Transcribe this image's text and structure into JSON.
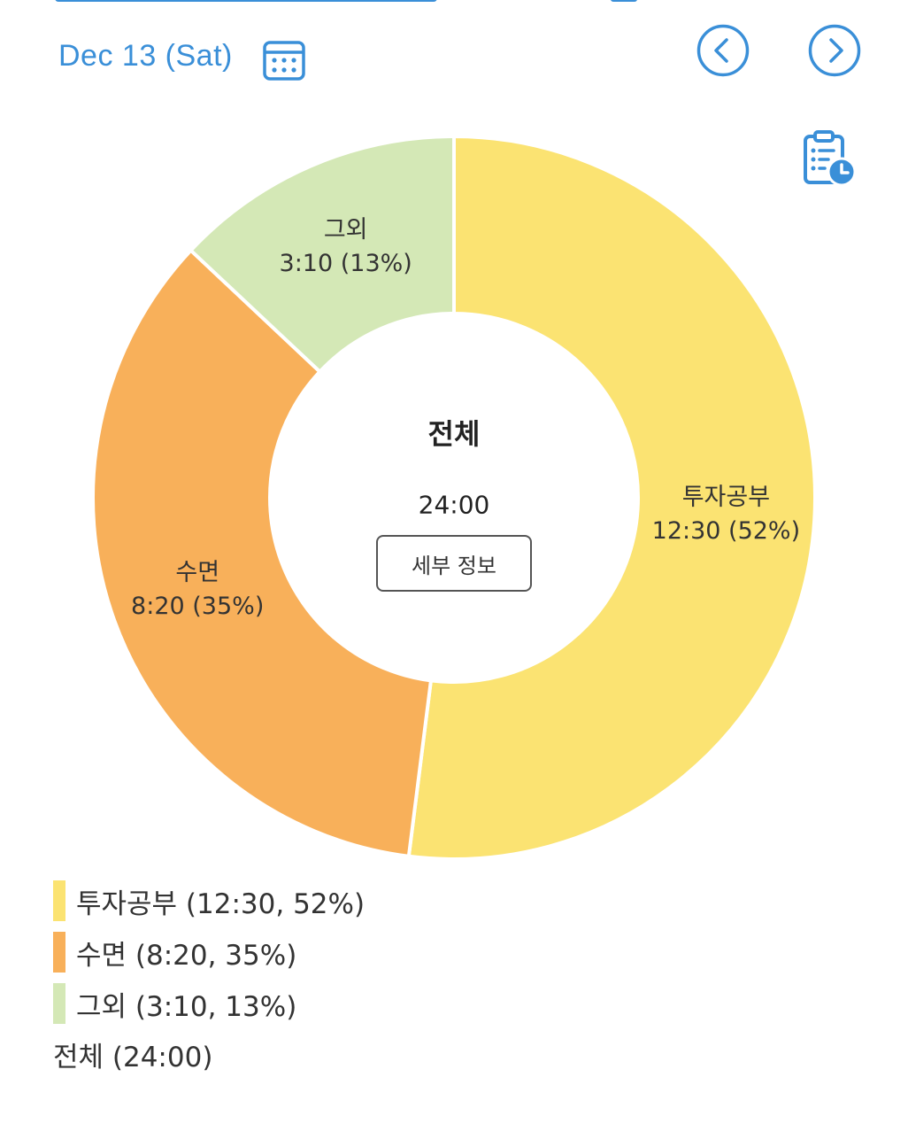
{
  "header": {
    "date": "Dec 13 (Sat)",
    "calendar_icon": "calendar-icon",
    "prev_icon": "chevron-left-circle-icon",
    "next_icon": "chevron-right-circle-icon",
    "report_icon": "clipboard-clock-icon",
    "accent_color": "#3a8fd8"
  },
  "center": {
    "title": "전체",
    "total": "24:00",
    "detail_button": "세부 정보"
  },
  "chart_data": {
    "type": "pie",
    "categories": [
      "투자공부",
      "수면",
      "그외"
    ],
    "values": [
      52,
      35,
      13
    ],
    "durations": [
      "12:30",
      "8:20",
      "3:10"
    ],
    "labels": [
      {
        "name": "투자공부",
        "value": "12:30 (52%)"
      },
      {
        "name": "수면",
        "value": "8:20 (35%)"
      },
      {
        "name": "그외",
        "value": "3:10 (13%)"
      }
    ],
    "colors": [
      "#fbe372",
      "#f8b05a",
      "#d4e8b6"
    ],
    "donut": true,
    "legend_position": "bottom-left"
  },
  "legend": {
    "items": [
      {
        "text": "투자공부 (12:30, 52%)",
        "color": "#fbe372"
      },
      {
        "text": "수면 (8:20, 35%)",
        "color": "#f8b05a"
      },
      {
        "text": "그외 (3:10, 13%)",
        "color": "#d4e8b6"
      }
    ],
    "total": "전체 (24:00)"
  }
}
